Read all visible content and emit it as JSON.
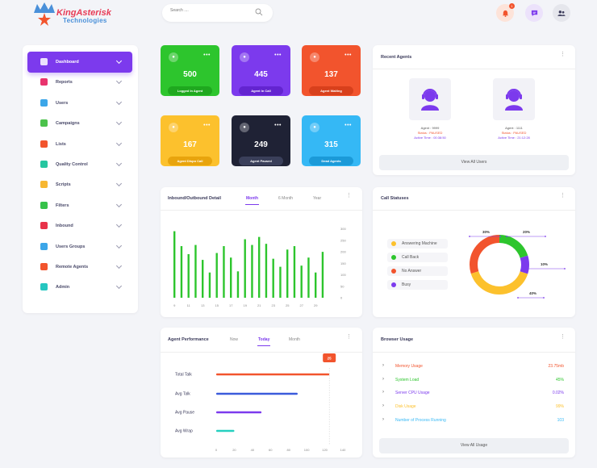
{
  "header": {
    "logo_line1": "KingAsterisk",
    "logo_line2": "Technologies",
    "search_placeholder": "Search ....",
    "notification_count": "1"
  },
  "sidebar": {
    "items": [
      {
        "label": "Dashboard",
        "icon": "dashboard-icon",
        "color": "#ffffff",
        "active": true
      },
      {
        "label": "Reports",
        "icon": "reports-icon",
        "color": "#e8336d"
      },
      {
        "label": "Users",
        "icon": "users-icon",
        "color": "#3ca6e8"
      },
      {
        "label": "Campaigns",
        "icon": "campaigns-icon",
        "color": "#4cc24c"
      },
      {
        "label": "Lists",
        "icon": "lists-icon",
        "color": "#f2542d"
      },
      {
        "label": "Quality Control",
        "icon": "quality-control-icon",
        "color": "#26c6a0"
      },
      {
        "label": "Scripts",
        "icon": "scripts-icon",
        "color": "#f7b731"
      },
      {
        "label": "Filters",
        "icon": "filters-icon",
        "color": "#36c24a"
      },
      {
        "label": "Inbound",
        "icon": "inbound-icon",
        "color": "#e8334a"
      },
      {
        "label": "Users Groups",
        "icon": "users-groups-icon",
        "color": "#3ca6e8"
      },
      {
        "label": "Remote Agents",
        "icon": "remote-agents-icon",
        "color": "#f2542d"
      },
      {
        "label": "Admin",
        "icon": "admin-icon",
        "color": "#26c6c0"
      }
    ]
  },
  "tiles": [
    {
      "value": "500",
      "label": "Logged In Agent",
      "color": "#2dc52d",
      "pill": "#1fa81f",
      "icon": "agents-icon"
    },
    {
      "value": "445",
      "label": "Agent In Call",
      "color": "#7c3aed",
      "pill": "#6324d0",
      "icon": "phone-call-icon"
    },
    {
      "value": "137",
      "label": "Agent Waiting",
      "color": "#f2542d",
      "pill": "#d8401c",
      "icon": "agent-waiting-icon"
    },
    {
      "value": "167",
      "label": "Agent Dispo Call",
      "color": "#fcc12d",
      "pill": "#e8a40d",
      "icon": "phone-icon"
    },
    {
      "value": "249",
      "label": "Agent Paused",
      "color": "#1f2235",
      "pill": "#3a3f5a",
      "icon": "phone-paused-icon"
    },
    {
      "value": "315",
      "label": "Dead Agents",
      "color": "#35b8f5",
      "pill": "#1b9ad8",
      "icon": "hangup-icon"
    }
  ],
  "recent_agents": {
    "title": "Recent Agents",
    "agents": [
      {
        "name": "Agent : 9999",
        "status": "Status : PAUSED",
        "time": "Active Time : 00:38:50"
      },
      {
        "name": "Agent : 1111",
        "status": "Status : PAUSED",
        "time": "Active Time : 21:12:28"
      }
    ],
    "button": "View All Users"
  },
  "inout": {
    "title": "Inbound/Outbound Detail",
    "tabs": [
      "Month",
      "6 Month",
      "Year"
    ],
    "active_tab": 0
  },
  "call_statuses": {
    "title": "Call Statuses",
    "legend": [
      {
        "label": "Answering Machine",
        "color": "#fcc12d"
      },
      {
        "label": "Call Back",
        "color": "#2dc52d"
      },
      {
        "label": "No Answer",
        "color": "#f2542d"
      },
      {
        "label": "Busy",
        "color": "#7c3aed"
      }
    ]
  },
  "agent_performance": {
    "title": "Agent Performance",
    "tabs": [
      "Now",
      "Today",
      "Month"
    ],
    "active_tab": 1,
    "marker": "25"
  },
  "browser_usage": {
    "title": "Browser Usage",
    "rows": [
      {
        "name": "Memory Usage",
        "value": "23.75mb",
        "color": "#f2542d"
      },
      {
        "name": "System Load",
        "value": "45%",
        "color": "#2dc52d"
      },
      {
        "name": "Server CPU Usage",
        "value": "0.02%",
        "color": "#7c3aed"
      },
      {
        "name": "Disk Usage",
        "value": "99%",
        "color": "#fcc12d"
      },
      {
        "name": "Number of Process Running",
        "value": "103",
        "color": "#35b8f5"
      }
    ],
    "button": "View All Usage"
  },
  "chart_data": [
    {
      "type": "bar",
      "categories": [
        "9",
        "10",
        "11",
        "12",
        "13",
        "14",
        "15",
        "16",
        "17",
        "18",
        "19",
        "20",
        "21",
        "22",
        "23",
        "24",
        "25",
        "26",
        "27",
        "28",
        "29",
        "30"
      ],
      "x_tick_labels": [
        "9",
        "11",
        "13",
        "15",
        "17",
        "19",
        "21",
        "23",
        "25",
        "27",
        "29"
      ],
      "values": [
        290,
        225,
        190,
        230,
        165,
        110,
        195,
        225,
        175,
        115,
        255,
        230,
        265,
        235,
        170,
        135,
        210,
        225,
        140,
        175,
        110,
        200
      ],
      "y_ticks": [
        "0",
        "50",
        "100",
        "150",
        "200",
        "250",
        "300"
      ],
      "ylim": [
        0,
        320
      ],
      "color": "#2dc52d"
    },
    {
      "type": "pie",
      "labels": [
        "Answering Machine",
        "Call Back",
        "No Answer",
        "Busy"
      ],
      "values": [
        40,
        20,
        30,
        10
      ],
      "value_labels": [
        "40%",
        "20%",
        "30%",
        "10%"
      ],
      "colors": [
        "#fcc12d",
        "#2dc52d",
        "#f2542d",
        "#7c3aed"
      ]
    },
    {
      "type": "bar",
      "orientation": "horizontal",
      "categories": [
        "Total Talk",
        "Avg Talk",
        "Avg Pause",
        "Avg Wrap"
      ],
      "values": [
        125,
        90,
        50,
        20
      ],
      "colors": [
        "#f2542d",
        "#3b5bdb",
        "#7c3aed",
        "#26d0c0"
      ],
      "x_ticks": [
        "0",
        "20",
        "40",
        "60",
        "80",
        "100",
        "120",
        "140"
      ],
      "xlim": [
        0,
        140
      ]
    }
  ]
}
